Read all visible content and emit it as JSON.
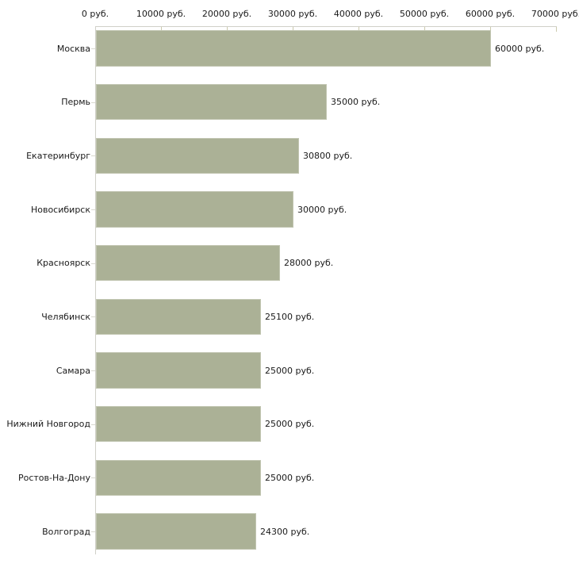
{
  "chart_data": {
    "type": "bar",
    "orientation": "horizontal",
    "title": "",
    "categories": [
      "Москва",
      "Пермь",
      "Екатеринбург",
      "Новосибирск",
      "Красноярск",
      "Челябинск",
      "Самара",
      "Нижний Новгород",
      "Ростов-На-Дону",
      "Волгоград"
    ],
    "values": [
      60000,
      35000,
      30800,
      30000,
      28000,
      25100,
      25000,
      25000,
      25000,
      24300
    ],
    "value_labels": [
      "60000 руб.",
      "35000 руб.",
      "30800 руб.",
      "30000 руб.",
      "28000 руб.",
      "25100 руб.",
      "25000 руб.",
      "25000 руб.",
      "25000 руб.",
      "24300 руб."
    ],
    "unit": "руб.",
    "x_axis": {
      "position": "top",
      "min": 0,
      "max": 70000,
      "tick_step": 10000,
      "tick_labels": [
        "0 руб.",
        "10000 руб.",
        "20000 руб.",
        "30000 руб.",
        "40000 руб.",
        "50000 руб.",
        "60000 руб.",
        "70000 руб."
      ]
    },
    "grid": false,
    "legend": false,
    "colors": {
      "background": "#ffffff",
      "bar_fill": "#abb196",
      "bar_border": "#c2c6b2",
      "axis_line": "#d0d0c8",
      "x_tick_mark": "#cccaae",
      "category_tick_mark": "#d9d9d0",
      "label_text": "#1a1a1a"
    }
  }
}
